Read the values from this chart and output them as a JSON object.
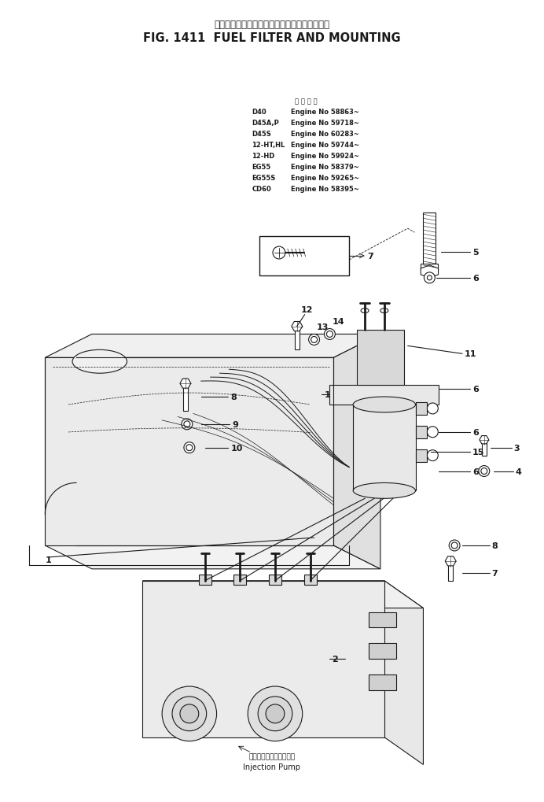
{
  "title_japanese": "フェエル　フィルタ　および　マウンティング",
  "title_english": "FIG. 1411  FUEL FILTER AND MOUNTING",
  "bg_color": "#ffffff",
  "line_color": "#1a1a1a",
  "table_header": "適 用 車 種",
  "table_rows": [
    [
      "D40",
      "Engine No 58863~"
    ],
    [
      "D45A,P",
      "Engine No 59718~"
    ],
    [
      "D45S",
      "Engine No 60283~"
    ],
    [
      "12-HT,HL",
      "Engine No 59744~"
    ],
    [
      "12-HD",
      "Engine No 59924~"
    ],
    [
      "EG55",
      "Engine No 58379~"
    ],
    [
      "EG55S",
      "Engine No 59265~"
    ],
    [
      "CD60",
      "Engine No 58395~"
    ]
  ],
  "injection_pump_ja": "インジェクションポンプ",
  "injection_pump_en": "Injection Pump"
}
